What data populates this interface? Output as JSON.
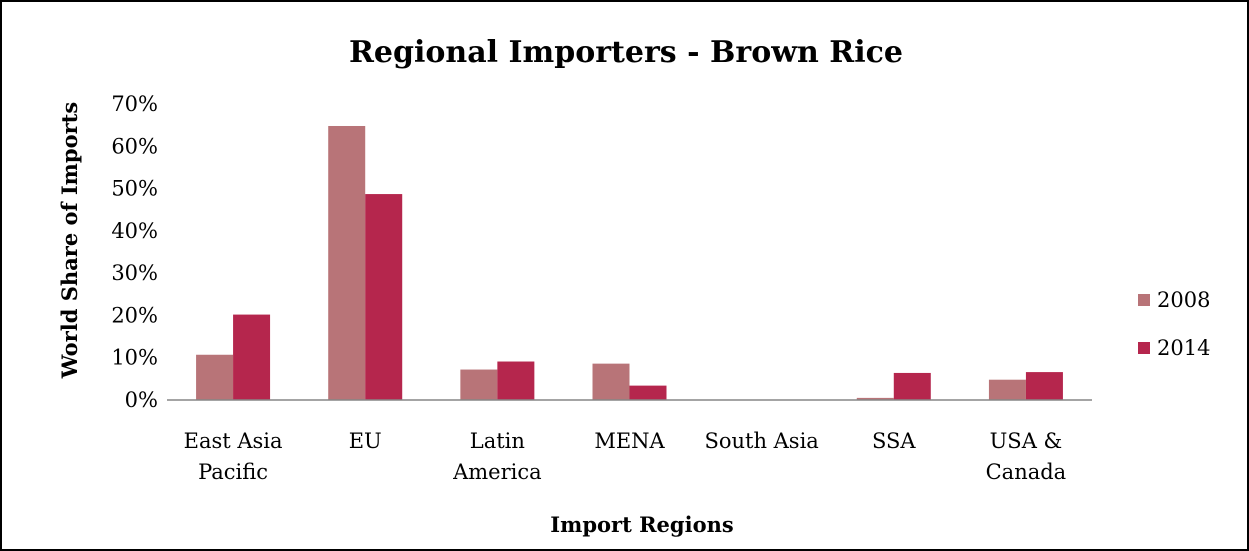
{
  "chart_data": {
    "type": "bar",
    "title": "Regional Importers - Brown Rice",
    "xlabel": "Import Regions",
    "ylabel": "World Share of Imports",
    "ylim": [
      0,
      70
    ],
    "yticks": [
      "0%",
      "10%",
      "20%",
      "30%",
      "40%",
      "50%",
      "60%",
      "70%"
    ],
    "categories": [
      [
        "East Asia",
        "Pacific"
      ],
      [
        "EU"
      ],
      [
        "Latin",
        "America"
      ],
      [
        "MENA"
      ],
      [
        "South Asia"
      ],
      [
        "SSA"
      ],
      [
        "USA &",
        "Canada"
      ]
    ],
    "series": [
      {
        "name": "2008",
        "color": "#b87478",
        "values": [
          10.7,
          64.8,
          7.2,
          8.6,
          0.0,
          0.5,
          4.8
        ]
      },
      {
        "name": "2014",
        "color": "#b5264d",
        "values": [
          20.2,
          48.7,
          9.1,
          3.4,
          0.0,
          6.4,
          6.6
        ]
      }
    ],
    "grid": false,
    "legend": "right"
  }
}
